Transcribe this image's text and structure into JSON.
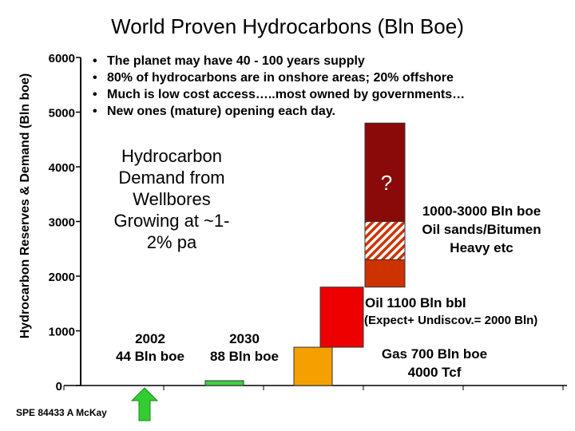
{
  "title": "World Proven Hydrocarbons (Bln Boe)",
  "ylabel": "Hydrocarbon Reserves & Demand (Bln boe)",
  "bullets": [
    "The planet may have 40 - 100 years supply",
    "80% of hydrocarbons are in onshore areas; 20% offshore",
    "Much is low cost access…..most owned by governments…",
    "New ones (mature) opening each day."
  ],
  "demand_text": "Hydrocarbon Demand from Wellbores Growing at ~1-2% pa",
  "year_2002": "2002",
  "year_2002_value": "44 Bln boe",
  "year_2030": "2030",
  "year_2030_value": "88 Bln boe",
  "gas_label": "Gas 700 Bln boe",
  "gas_label2": "4000 Tcf",
  "oil_label": "Oil  1100 Bln bbl",
  "oil_sub": "(Expect+ Undiscov.= 2000 Bln)",
  "unconv_label": "1000-3000 Bln boe",
  "unconv_label2": "Oil sands/Bitumen",
  "unconv_label3": "Heavy etc",
  "question_mark": "?",
  "source": "SPE 84433  A McKay",
  "colors": {
    "gas": "#f5a000",
    "oil": "#ee0000",
    "unconv_low": "#cc3300",
    "unconv_mid_a": "#cc3300",
    "unconv_mid_b": "#ffffff",
    "unconv_top": "#8a0a0a",
    "demand_bar": "#44cc44",
    "arrow": "#33cc33"
  },
  "chart_data": {
    "type": "bar",
    "title": "World Proven Hydrocarbons (Bln Boe)",
    "ylabel": "Hydrocarbon Reserves & Demand (Bln boe)",
    "ylim": [
      0,
      6000
    ],
    "yticks": [
      0,
      1000,
      2000,
      3000,
      4000,
      5000,
      6000
    ],
    "grid": false,
    "series": [
      {
        "name": "2002",
        "base": 0,
        "value": 44
      },
      {
        "name": "2030",
        "base": 0,
        "value": 88
      },
      {
        "name": "Gas",
        "base": 0,
        "value": 700
      },
      {
        "name": "Oil",
        "base": 700,
        "value": 1100
      },
      {
        "name": "Oil sands/Bitumen/Heavy",
        "segments": [
          {
            "base": 1800,
            "value": 500
          },
          {
            "base": 2300,
            "value": 700
          },
          {
            "base": 3000,
            "value": 1800
          }
        ]
      }
    ]
  }
}
